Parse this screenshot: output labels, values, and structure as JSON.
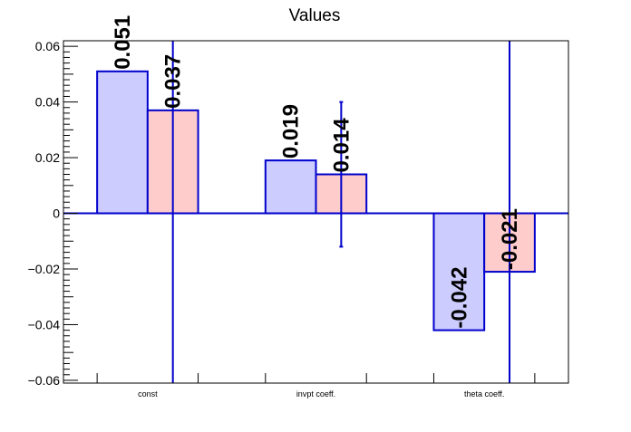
{
  "chart_data": {
    "type": "bar",
    "title": "Values",
    "xlabel": "",
    "ylabel": "",
    "categories": [
      "const",
      "invpt coeff.",
      "theta coeff."
    ],
    "ylim": [
      -0.061,
      0.062
    ],
    "yticks": [
      -0.06,
      -0.04,
      -0.02,
      0,
      0.02,
      0.04,
      0.06
    ],
    "ytick_labels": [
      "−0.06",
      "−0.04",
      "−0.02",
      "0",
      "0.02",
      "0.04",
      "0.06"
    ],
    "series": [
      {
        "values": [
          0.051,
          0.019,
          -0.042
        ],
        "labels": [
          "0.051",
          "0.019",
          "-0.042"
        ],
        "fill": "#ccccff",
        "stroke": "#0000cc"
      },
      {
        "values": [
          0.037,
          0.014,
          -0.021
        ],
        "labels": [
          "0.037",
          "0.014",
          "-0.021"
        ],
        "fill": "#ffcccc",
        "stroke": "#0000cc",
        "error_bars": [
          0.2,
          0.026,
          0.2
        ]
      }
    ],
    "grid": false,
    "legend": "none"
  }
}
